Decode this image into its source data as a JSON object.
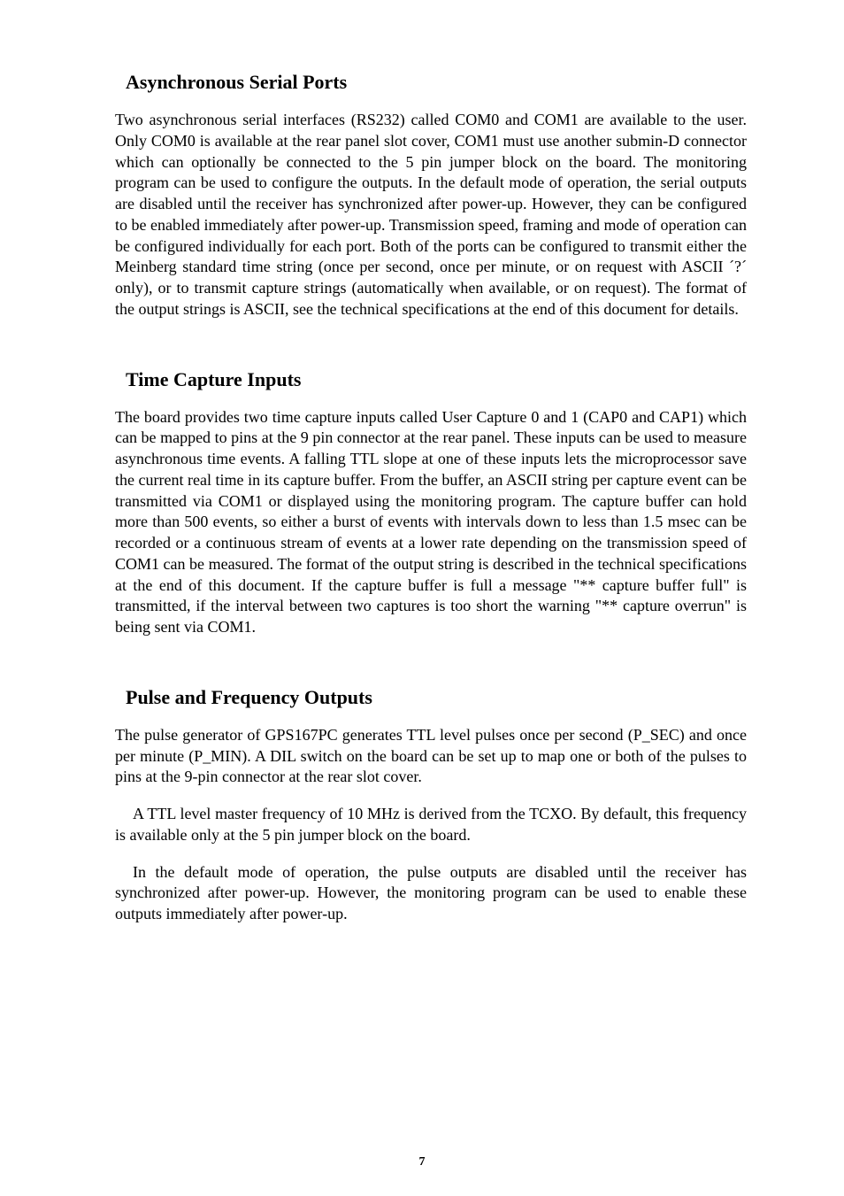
{
  "section1": {
    "heading": "Asynchronous Serial Ports",
    "body": "Two asynchronous serial interfaces (RS232) called COM0 and COM1 are available to the user. Only COM0 is available at the rear panel slot cover, COM1 must use another submin-D connector which can optionally be connected to the 5 pin jumper block on the board. The monitoring program can be used to configure the outputs. In the default mode of operation, the serial outputs are disabled until the receiver has synchronized after power-up. However, they can be configured to be enabled immediately after power-up. Transmission speed, framing and mode of operation can be configured individually for each port. Both of the ports can be configured to transmit either the Meinberg standard time string (once per second, once per minute, or on request with ASCII ´?´ only), or to transmit capture strings (automatically when available, or on request). The format of the output strings is ASCII, see the technical specifications at the end of this document for details."
  },
  "section2": {
    "heading": "Time Capture Inputs",
    "body": "The board provides two time capture inputs called User Capture 0 and 1 (CAP0 and CAP1) which can be mapped to pins at the 9 pin connector at the rear panel. These inputs can be used to measure asynchronous time events. A falling TTL slope at one of these inputs lets the microprocessor save the current real time in its capture buffer. From the buffer, an ASCII string per capture event can be transmitted via COM1 or displayed using the monitoring program. The capture buffer can hold more than 500 events, so either a burst of events with intervals down to less than 1.5 msec can be recorded or a continuous stream of events at a lower rate depending on the transmission speed of COM1 can be measured. The format of the output string is described in the technical specifications at the end of this document. If the capture buffer is full a message \"** capture buffer full\" is transmitted, if the interval between two captures is too short the warning \"** capture overrun\" is being sent via COM1."
  },
  "section3": {
    "heading": "Pulse and Frequency Outputs",
    "p1": "The pulse generator of GPS167PC generates TTL level pulses once per second (P_SEC) and once per minute (P_MIN). A DIL switch on the board can be set up to map one or both of the pulses to pins at the 9-pin connector at the rear slot cover.",
    "p2": "A TTL level master frequency of 10 MHz is derived from the TCXO. By default, this frequency is available only at the 5 pin jumper block on the board.",
    "p3": "In the default mode of operation, the pulse outputs are disabled until the receiver has synchronized after power-up. However, the monitoring program can be used to enable these outputs immediately after power-up."
  },
  "pageNumber": "7"
}
